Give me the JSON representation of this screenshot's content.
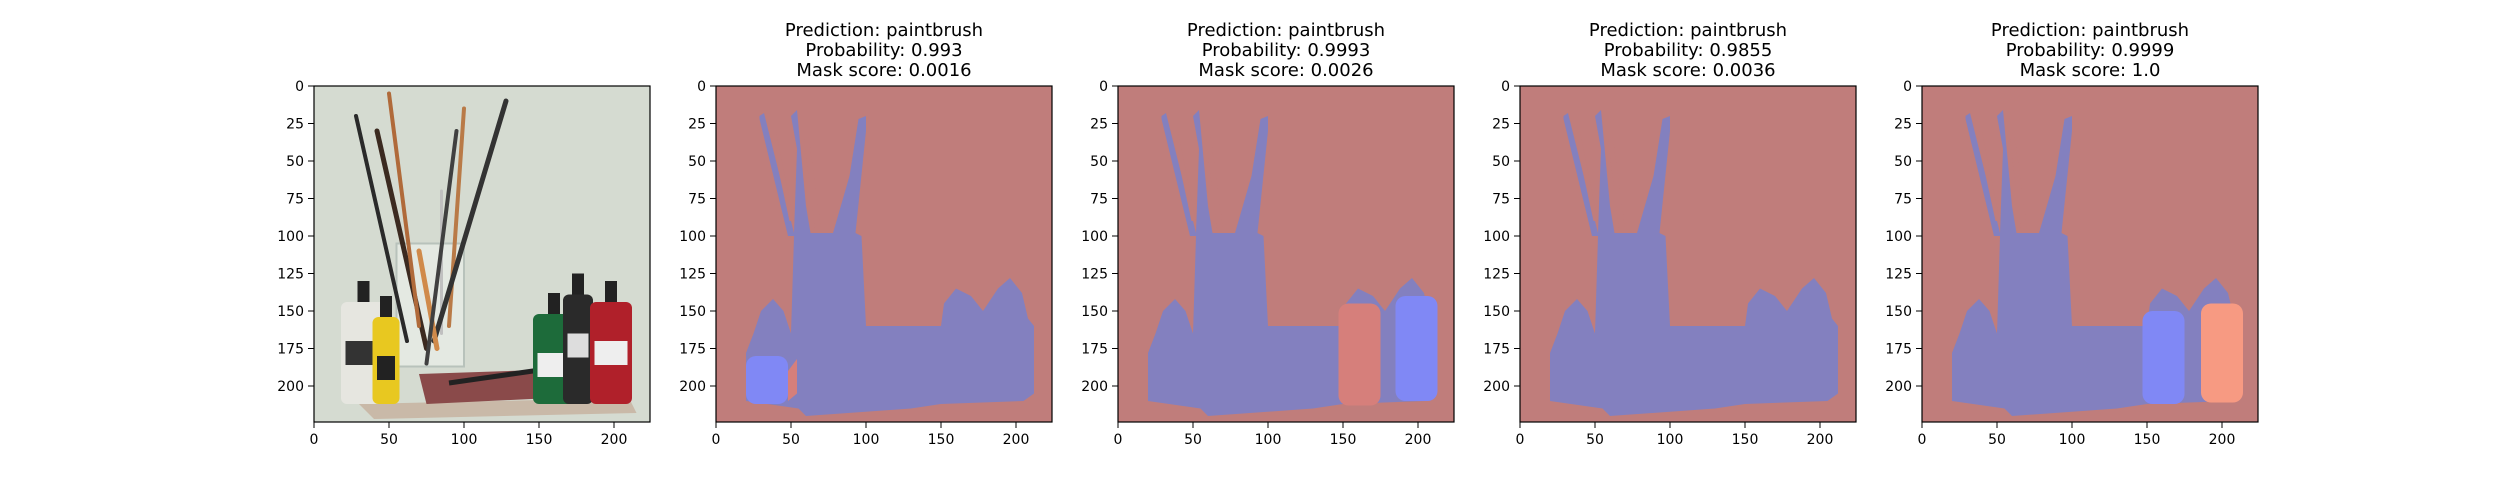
{
  "chart_data": [
    {
      "type": "image",
      "title_lines": [],
      "x_ticks": [
        "0",
        "50",
        "100",
        "150",
        "200"
      ],
      "y_ticks": [
        "0",
        "25",
        "50",
        "75",
        "100",
        "125",
        "150",
        "175",
        "200"
      ],
      "xlim": [
        0,
        224
      ],
      "ylim": [
        224,
        0
      ],
      "content": "photo"
    },
    {
      "type": "image",
      "title_lines": [
        "Prediction: paintbrush",
        "Probability: 0.993",
        "Mask score: 0.0016"
      ],
      "x_ticks": [
        "0",
        "50",
        "100",
        "150",
        "200"
      ],
      "y_ticks": [
        "0",
        "25",
        "50",
        "75",
        "100",
        "125",
        "150",
        "175",
        "200"
      ],
      "xlim": [
        0,
        224
      ],
      "ylim": [
        224,
        0
      ],
      "content": "mask",
      "highlight": "left-bottle"
    },
    {
      "type": "image",
      "title_lines": [
        "Prediction: paintbrush",
        "Probability: 0.9993",
        "Mask score: 0.0026"
      ],
      "x_ticks": [
        "0",
        "50",
        "100",
        "150",
        "200"
      ],
      "y_ticks": [
        "0",
        "25",
        "50",
        "75",
        "100",
        "125",
        "150",
        "175",
        "200"
      ],
      "xlim": [
        0,
        224
      ],
      "ylim": [
        224,
        0
      ],
      "content": "mask",
      "highlight": "green-bottle"
    },
    {
      "type": "image",
      "title_lines": [
        "Prediction: paintbrush",
        "Probability: 0.9855",
        "Mask score: 0.0036"
      ],
      "x_ticks": [
        "0",
        "50",
        "100",
        "150",
        "200"
      ],
      "y_ticks": [
        "0",
        "25",
        "50",
        "75",
        "100",
        "125",
        "150",
        "175",
        "200"
      ],
      "xlim": [
        0,
        224
      ],
      "ylim": [
        224,
        0
      ],
      "content": "mask",
      "highlight": "none"
    },
    {
      "type": "image",
      "title_lines": [
        "Prediction: paintbrush",
        "Probability: 0.9999",
        "Mask score: 1.0"
      ],
      "x_ticks": [
        "0",
        "50",
        "100",
        "150",
        "200"
      ],
      "y_ticks": [
        "0",
        "25",
        "50",
        "75",
        "100",
        "125",
        "150",
        "175",
        "200"
      ],
      "xlim": [
        0,
        224
      ],
      "ylim": [
        224,
        0
      ],
      "content": "mask",
      "highlight": "right-bottles"
    }
  ],
  "colors": {
    "background_mask": "#c07d7b",
    "object_mask": "#8380bf",
    "highlight_blue": "#8088f5",
    "highlight_red": "#d67f7b",
    "highlight_orange": "#f79a82",
    "photo_bg": "#d5dbd1"
  }
}
